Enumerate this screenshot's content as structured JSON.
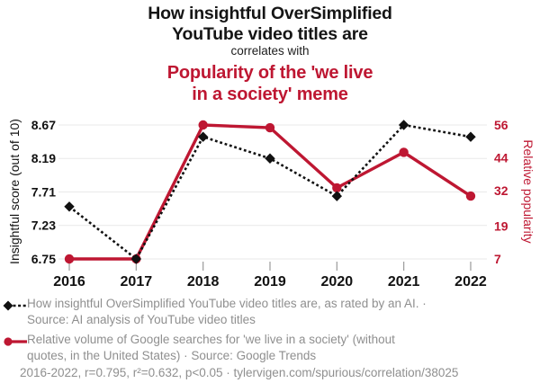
{
  "header": {
    "title_black": "How insightful OverSimplified\nYouTube video titles are",
    "connector": "correlates with",
    "title_red": "Popularity of the 'we live\nin a society' meme"
  },
  "chart_data": {
    "type": "line",
    "x": [
      2016,
      2017,
      2018,
      2019,
      2020,
      2021,
      2022
    ],
    "series": [
      {
        "name": "insightful-score",
        "axis": "left",
        "color": "#111111",
        "style": "dashed",
        "marker": "diamond",
        "values": [
          7.5,
          6.75,
          8.5,
          8.19,
          7.65,
          8.67,
          8.5
        ]
      },
      {
        "name": "relative-popularity",
        "axis": "right",
        "color": "#be1732",
        "style": "solid",
        "marker": "circle",
        "values": [
          7,
          7,
          56,
          55,
          33,
          46,
          30
        ]
      }
    ],
    "left_axis": {
      "label": "Insightful score (out of 10)",
      "ticks": [
        6.75,
        7.23,
        7.71,
        8.19,
        8.67
      ],
      "tick_labels": [
        "6.75",
        "7.23",
        "7.71",
        "8.19",
        "8.67"
      ],
      "range": [
        6.75,
        8.67
      ]
    },
    "right_axis": {
      "label": "Relative popularity",
      "ticks": [
        7,
        19,
        32,
        44,
        56
      ],
      "tick_labels": [
        "7",
        "19",
        "32",
        "44",
        "56"
      ],
      "range": [
        7,
        56
      ]
    },
    "grid": true,
    "legend_position": "bottom"
  },
  "legend": {
    "items": [
      {
        "marker": "black-diamond-dashed",
        "text": "How insightful OverSimplified YouTube video titles are, as rated by an AI. ·\nSource: AI analysis of YouTube video titles"
      },
      {
        "marker": "red-circle-solid",
        "text": "Relative volume of Google searches for 'we live in a society' (without\nquotes, in the United States) · Source: Google Trends"
      }
    ]
  },
  "footer": {
    "text": "2016-2022, r=0.795, r²=0.632, p<0.05 · tylervigen.com/spurious/correlation/38025"
  },
  "colors": {
    "red": "#be1732",
    "black": "#111111",
    "legend_gray": "#8f8f8f",
    "gridline": "#e9e9e9",
    "tick": "#9a9a9a"
  }
}
